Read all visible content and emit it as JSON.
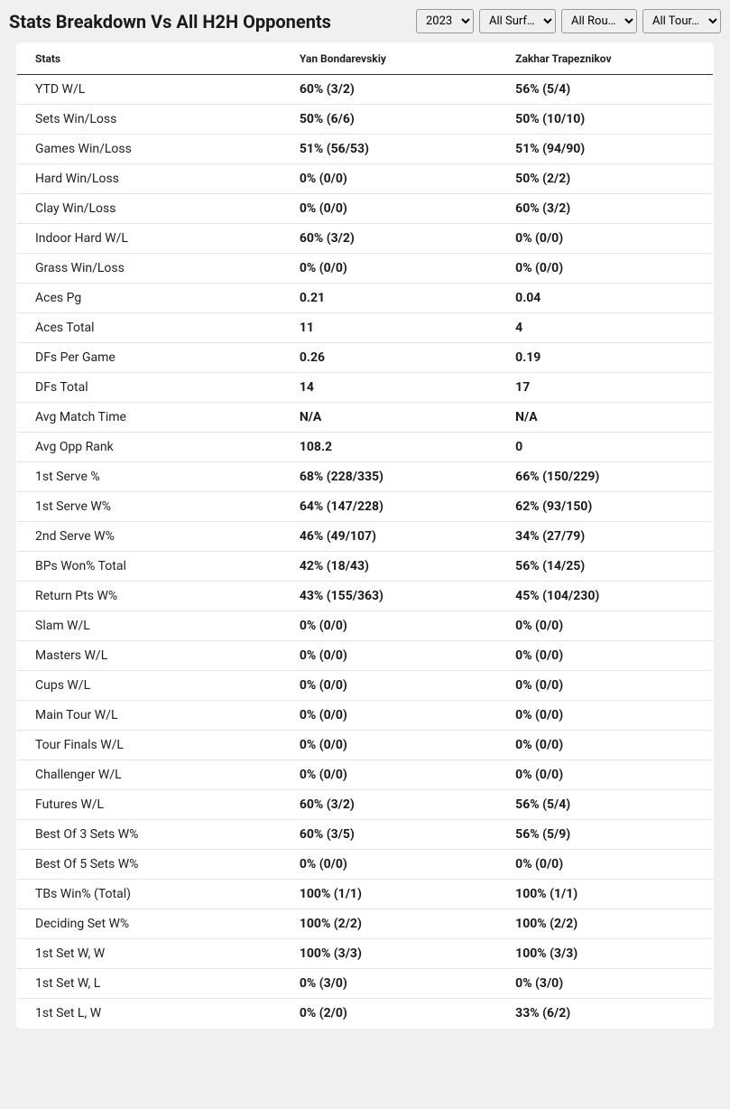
{
  "page_title": "Stats Breakdown Vs All H2H Opponents",
  "filters": {
    "year": "2023",
    "surface": "All Surf…",
    "round": "All Rou…",
    "tour": "All Tour…"
  },
  "table": {
    "columns": [
      "Stats",
      "Yan Bondarevskiy",
      "Zakhar Trapeznikov"
    ],
    "rows": [
      {
        "stat": "YTD W/L",
        "p1": "60% (3/2)",
        "p2": "56% (5/4)"
      },
      {
        "stat": "Sets Win/Loss",
        "p1": "50% (6/6)",
        "p2": "50% (10/10)"
      },
      {
        "stat": "Games Win/Loss",
        "p1": "51% (56/53)",
        "p2": "51% (94/90)"
      },
      {
        "stat": "Hard Win/Loss",
        "p1": "0% (0/0)",
        "p2": "50% (2/2)"
      },
      {
        "stat": "Clay Win/Loss",
        "p1": "0% (0/0)",
        "p2": "60% (3/2)"
      },
      {
        "stat": "Indoor Hard W/L",
        "p1": "60% (3/2)",
        "p2": "0% (0/0)"
      },
      {
        "stat": "Grass Win/Loss",
        "p1": "0% (0/0)",
        "p2": "0% (0/0)"
      },
      {
        "stat": "Aces Pg",
        "p1": "0.21",
        "p2": "0.04"
      },
      {
        "stat": "Aces Total",
        "p1": "11",
        "p2": "4"
      },
      {
        "stat": "DFs Per Game",
        "p1": "0.26",
        "p2": "0.19"
      },
      {
        "stat": "DFs Total",
        "p1": "14",
        "p2": "17"
      },
      {
        "stat": "Avg Match Time",
        "p1": "N/A",
        "p2": "N/A"
      },
      {
        "stat": "Avg Opp Rank",
        "p1": "108.2",
        "p2": "0"
      },
      {
        "stat": "1st Serve %",
        "p1": "68% (228/335)",
        "p2": "66% (150/229)"
      },
      {
        "stat": "1st Serve W%",
        "p1": "64% (147/228)",
        "p2": "62% (93/150)"
      },
      {
        "stat": "2nd Serve W%",
        "p1": "46% (49/107)",
        "p2": "34% (27/79)"
      },
      {
        "stat": "BPs Won% Total",
        "p1": "42% (18/43)",
        "p2": "56% (14/25)"
      },
      {
        "stat": "Return Pts W%",
        "p1": "43% (155/363)",
        "p2": "45% (104/230)"
      },
      {
        "stat": "Slam W/L",
        "p1": "0% (0/0)",
        "p2": "0% (0/0)"
      },
      {
        "stat": "Masters W/L",
        "p1": "0% (0/0)",
        "p2": "0% (0/0)"
      },
      {
        "stat": "Cups W/L",
        "p1": "0% (0/0)",
        "p2": "0% (0/0)"
      },
      {
        "stat": "Main Tour W/L",
        "p1": "0% (0/0)",
        "p2": "0% (0/0)"
      },
      {
        "stat": "Tour Finals W/L",
        "p1": "0% (0/0)",
        "p2": "0% (0/0)"
      },
      {
        "stat": "Challenger W/L",
        "p1": "0% (0/0)",
        "p2": "0% (0/0)"
      },
      {
        "stat": "Futures W/L",
        "p1": "60% (3/2)",
        "p2": "56% (5/4)"
      },
      {
        "stat": "Best Of 3 Sets W%",
        "p1": "60% (3/5)",
        "p2": "56% (5/9)"
      },
      {
        "stat": "Best Of 5 Sets W%",
        "p1": "0% (0/0)",
        "p2": "0% (0/0)"
      },
      {
        "stat": "TBs Win% (Total)",
        "p1": "100% (1/1)",
        "p2": "100% (1/1)"
      },
      {
        "stat": "Deciding Set W%",
        "p1": "100% (2/2)",
        "p2": "100% (2/2)"
      },
      {
        "stat": "1st Set W, W",
        "p1": "100% (3/3)",
        "p2": "100% (3/3)"
      },
      {
        "stat": "1st Set W, L",
        "p1": "0% (3/0)",
        "p2": "0% (3/0)"
      },
      {
        "stat": "1st Set L, W",
        "p1": "0% (2/0)",
        "p2": "33% (6/2)"
      }
    ]
  },
  "styling": {
    "page_background": "#f0f0f0",
    "table_background": "#ffffff",
    "table_border": "#333333",
    "row_divider": "#e5e5e5",
    "header_font_size": 20,
    "column_header_font_size": 12,
    "cell_font_size": 14,
    "stat_name_weight": 400,
    "stat_value_weight": 700,
    "text_color": "#1a1a1a"
  }
}
